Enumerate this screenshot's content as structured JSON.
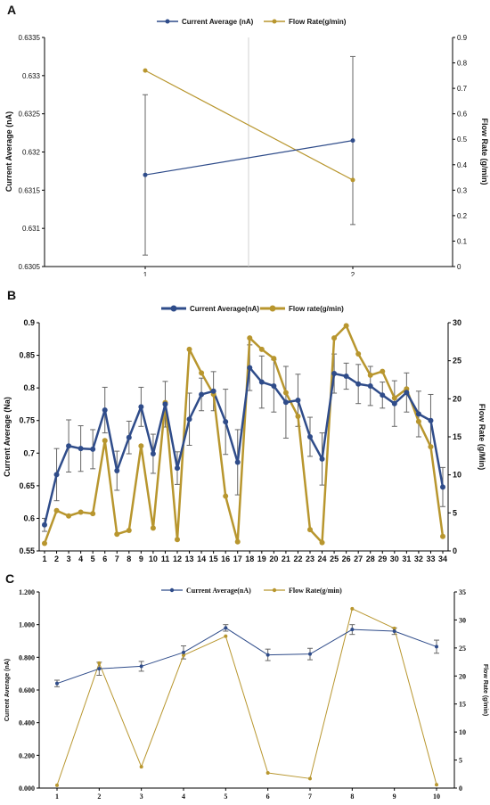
{
  "colors": {
    "blue": "#2F4C8A",
    "gold": "#B8962E",
    "errbar": "#666666",
    "axis": "#000000"
  },
  "chart_data": [
    {
      "id": "A",
      "type": "line",
      "panel_label": "A",
      "categories": [
        "1",
        "2"
      ],
      "series": [
        {
          "name": "Current Average (nA)",
          "axis": "left",
          "values": [
            0.6317,
            0.63215
          ],
          "error": [
            0.00105,
            0.0011
          ],
          "color": "#2F4C8A"
        },
        {
          "name": "Flow Rate(g/min)",
          "axis": "right",
          "values": [
            0.77,
            0.34
          ],
          "color": "#B8962E"
        }
      ],
      "ylabel": "Current Average (nA)",
      "y2label": "Flow Rate (g/min)",
      "ylim": [
        0.6305,
        0.6335
      ],
      "yticks": [
        "0.6305",
        "0.631",
        "0.6315",
        "0.632",
        "0.6325",
        "0.633",
        "0.6335"
      ],
      "y2lim": [
        0,
        0.9
      ],
      "y2ticks": [
        "0",
        "0.1",
        "0.2",
        "0.3",
        "0.4",
        "0.5",
        "0.6",
        "0.7",
        "0.8",
        "0.9"
      ],
      "legend": "top-center"
    },
    {
      "id": "B",
      "type": "line",
      "panel_label": "B",
      "categories": [
        "1",
        "2",
        "3",
        "4",
        "5",
        "6",
        "7",
        "8",
        "9",
        "10",
        "11",
        "12",
        "13",
        "14",
        "15",
        "16",
        "17",
        "18",
        "19",
        "20",
        "21",
        "22",
        "23",
        "24",
        "25",
        "26",
        "27",
        "28",
        "29",
        "30",
        "31",
        "32",
        "33",
        "34"
      ],
      "series": [
        {
          "name": "Current Average(nA)",
          "axis": "left",
          "values": [
            0.59,
            0.667,
            0.711,
            0.707,
            0.706,
            0.766,
            0.673,
            0.724,
            0.771,
            0.699,
            0.775,
            0.677,
            0.752,
            0.79,
            0.795,
            0.748,
            0.686,
            0.831,
            0.809,
            0.803,
            0.778,
            0.781,
            0.725,
            0.691,
            0.822,
            0.818,
            0.806,
            0.803,
            0.789,
            0.776,
            0.793,
            0.76,
            0.75,
            0.648
          ],
          "error": [
            0.01,
            0.04,
            0.04,
            0.035,
            0.03,
            0.035,
            0.03,
            0.025,
            0.03,
            0.03,
            0.035,
            0.025,
            0.04,
            0.025,
            0.03,
            0.05,
            0.05,
            0.035,
            0.04,
            0.04,
            0.055,
            0.04,
            0.03,
            0.04,
            0.03,
            0.02,
            0.03,
            0.03,
            0.02,
            0.035,
            0.03,
            0.035,
            0.04,
            0.03
          ],
          "color": "#2F4C8A"
        },
        {
          "name": "Flow rate(g/min)",
          "axis": "right",
          "values": [
            1.0,
            5.3,
            4.6,
            5.1,
            4.9,
            14.5,
            2.2,
            2.7,
            13.8,
            3.0,
            19.5,
            1.5,
            26.5,
            23.4,
            20.6,
            7.2,
            1.2,
            28.0,
            26.5,
            25.3,
            20.8,
            17.7,
            2.8,
            1.1,
            28.0,
            29.6,
            25.9,
            23.1,
            23.6,
            20.1,
            21.3,
            17.0,
            13.7,
            1.9
          ],
          "color": "#B8962E"
        }
      ],
      "ylabel": "Current Average (Na)",
      "y2label": "Flow Rate (g/Min)",
      "ylim": [
        0.55,
        0.9
      ],
      "yticks": [
        "0.55",
        "0.6",
        "0.65",
        "0.7",
        "0.75",
        "0.8",
        "0.85",
        "0.9"
      ],
      "y2lim": [
        0,
        30
      ],
      "y2ticks": [
        "0",
        "5",
        "10",
        "15",
        "20",
        "25",
        "30"
      ],
      "legend": "top-center"
    },
    {
      "id": "C",
      "type": "line",
      "panel_label": "C",
      "categories": [
        "1",
        "2",
        "3",
        "4",
        "5",
        "6",
        "7",
        "8",
        "9",
        "10"
      ],
      "series": [
        {
          "name": "Current Average(nA)",
          "axis": "left",
          "values": [
            0.64,
            0.73,
            0.745,
            0.83,
            0.98,
            0.815,
            0.82,
            0.97,
            0.96,
            0.865
          ],
          "error": [
            0.02,
            0.04,
            0.03,
            0.04,
            0.02,
            0.035,
            0.035,
            0.03,
            0.02,
            0.04
          ],
          "color": "#2F4C8A"
        },
        {
          "name": "Flow Rate(g/min)",
          "axis": "right",
          "values": [
            0.5,
            22.3,
            3.8,
            23.7,
            27.1,
            2.7,
            1.7,
            32.0,
            28.5,
            0.6
          ],
          "color": "#B8962E"
        }
      ],
      "ylabel": "Current Average (nA)",
      "y2label": "Flow Rate (g/min)",
      "ylim": [
        0,
        1.2
      ],
      "yticks": [
        "0.000",
        "0.200",
        "0.400",
        "0.600",
        "0.800",
        "1.000",
        "1.200"
      ],
      "y2lim": [
        0,
        35
      ],
      "y2ticks": [
        "0",
        "5",
        "10",
        "15",
        "20",
        "25",
        "30",
        "35"
      ],
      "legend": "top-center"
    }
  ]
}
